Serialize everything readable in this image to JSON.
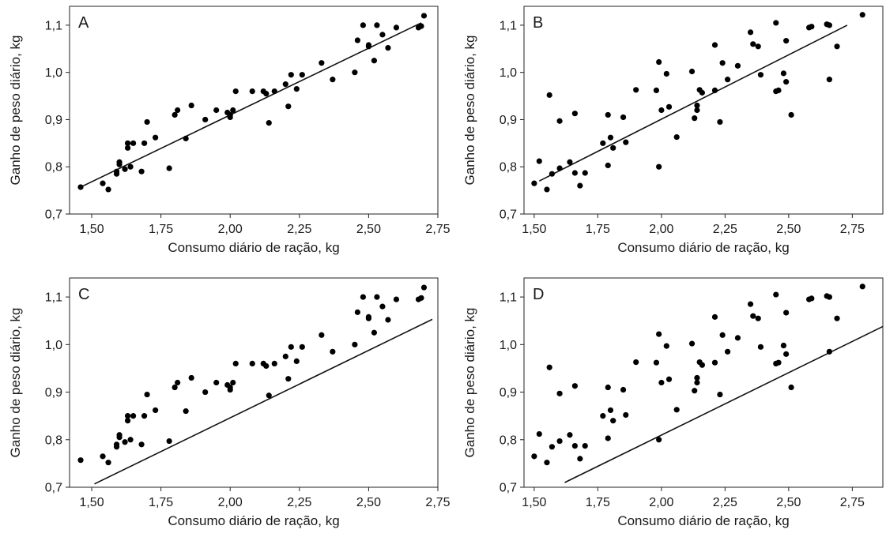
{
  "chart_data": [
    {
      "type": "scatter",
      "panel_label": "A",
      "xlabel": "Consumo diário de ração, kg",
      "ylabel": "Ganho de peso diário, kg",
      "xlim": [
        1.42,
        2.75
      ],
      "ylim": [
        0.7,
        1.14
      ],
      "xticks": [
        "1,50",
        "1,75",
        "2,00",
        "2,25",
        "2,50",
        "2,75"
      ],
      "yticks": [
        "0,7",
        "0,8",
        "0,9",
        "1,0",
        "1,1"
      ],
      "points": [
        [
          1.46,
          0.757
        ],
        [
          1.54,
          0.765
        ],
        [
          1.56,
          0.752
        ],
        [
          1.59,
          0.785
        ],
        [
          1.59,
          0.79
        ],
        [
          1.6,
          0.81
        ],
        [
          1.6,
          0.805
        ],
        [
          1.62,
          0.795
        ],
        [
          1.63,
          0.84
        ],
        [
          1.63,
          0.85
        ],
        [
          1.64,
          0.8
        ],
        [
          1.65,
          0.85
        ],
        [
          1.68,
          0.79
        ],
        [
          1.69,
          0.85
        ],
        [
          1.7,
          0.895
        ],
        [
          1.73,
          0.862
        ],
        [
          1.78,
          0.797
        ],
        [
          1.8,
          0.91
        ],
        [
          1.81,
          0.92
        ],
        [
          1.84,
          0.86
        ],
        [
          1.86,
          0.93
        ],
        [
          1.91,
          0.9
        ],
        [
          1.95,
          0.92
        ],
        [
          1.99,
          0.915
        ],
        [
          2.0,
          0.91
        ],
        [
          2.0,
          0.905
        ],
        [
          2.01,
          0.92
        ],
        [
          2.02,
          0.96
        ],
        [
          2.08,
          0.96
        ],
        [
          2.12,
          0.96
        ],
        [
          2.13,
          0.955
        ],
        [
          2.14,
          0.893
        ],
        [
          2.16,
          0.96
        ],
        [
          2.2,
          0.975
        ],
        [
          2.21,
          0.928
        ],
        [
          2.22,
          0.995
        ],
        [
          2.24,
          0.965
        ],
        [
          2.26,
          0.995
        ],
        [
          2.33,
          1.02
        ],
        [
          2.37,
          0.985
        ],
        [
          2.45,
          1.0
        ],
        [
          2.46,
          1.068
        ],
        [
          2.48,
          1.1
        ],
        [
          2.5,
          1.055
        ],
        [
          2.5,
          1.058
        ],
        [
          2.52,
          1.025
        ],
        [
          2.53,
          1.1
        ],
        [
          2.55,
          1.08
        ],
        [
          2.57,
          1.052
        ],
        [
          2.6,
          1.095
        ],
        [
          2.68,
          1.095
        ],
        [
          2.69,
          1.098
        ],
        [
          2.7,
          1.12
        ]
      ],
      "fit_line": {
        "x": [
          1.46,
          2.69
        ],
        "y": [
          0.757,
          1.105
        ]
      }
    },
    {
      "type": "scatter",
      "panel_label": "B",
      "xlabel": "Consumo diário de ração, kg",
      "ylabel": "Ganho de peso diário, kg",
      "xlim": [
        1.46,
        2.87
      ],
      "ylim": [
        0.7,
        1.14
      ],
      "xticks": [
        "1,50",
        "1,75",
        "2,00",
        "2,25",
        "2,50",
        "2,75"
      ],
      "yticks": [
        "0,7",
        "0,8",
        "0,9",
        "1,0",
        "1,1"
      ],
      "points": [
        [
          1.5,
          0.765
        ],
        [
          1.52,
          0.812
        ],
        [
          1.55,
          0.752
        ],
        [
          1.56,
          0.952
        ],
        [
          1.57,
          0.785
        ],
        [
          1.6,
          0.897
        ],
        [
          1.6,
          0.797
        ],
        [
          1.64,
          0.81
        ],
        [
          1.66,
          0.913
        ],
        [
          1.66,
          0.787
        ],
        [
          1.68,
          0.76
        ],
        [
          1.7,
          0.787
        ],
        [
          1.77,
          0.85
        ],
        [
          1.79,
          0.91
        ],
        [
          1.79,
          0.803
        ],
        [
          1.8,
          0.862
        ],
        [
          1.81,
          0.84
        ],
        [
          1.85,
          0.905
        ],
        [
          1.86,
          0.852
        ],
        [
          1.9,
          0.963
        ],
        [
          1.98,
          0.962
        ],
        [
          1.99,
          0.8
        ],
        [
          1.99,
          1.022
        ],
        [
          2.0,
          0.92
        ],
        [
          2.02,
          0.997
        ],
        [
          2.03,
          0.927
        ],
        [
          2.06,
          0.863
        ],
        [
          2.12,
          1.002
        ],
        [
          2.13,
          0.903
        ],
        [
          2.14,
          0.92
        ],
        [
          2.14,
          0.93
        ],
        [
          2.15,
          0.963
        ],
        [
          2.16,
          0.957
        ],
        [
          2.21,
          1.058
        ],
        [
          2.21,
          0.962
        ],
        [
          2.23,
          0.895
        ],
        [
          2.24,
          1.02
        ],
        [
          2.26,
          0.985
        ],
        [
          2.3,
          1.014
        ],
        [
          2.35,
          1.085
        ],
        [
          2.36,
          1.06
        ],
        [
          2.38,
          1.055
        ],
        [
          2.39,
          0.995
        ],
        [
          2.45,
          0.96
        ],
        [
          2.45,
          1.105
        ],
        [
          2.46,
          0.962
        ],
        [
          2.48,
          0.998
        ],
        [
          2.49,
          0.98
        ],
        [
          2.49,
          1.067
        ],
        [
          2.51,
          0.91
        ],
        [
          2.58,
          1.095
        ],
        [
          2.59,
          1.097
        ],
        [
          2.65,
          1.102
        ],
        [
          2.66,
          1.1
        ],
        [
          2.66,
          0.985
        ],
        [
          2.69,
          1.055
        ],
        [
          2.79,
          1.122
        ]
      ],
      "fit_line": {
        "x": [
          1.52,
          2.73
        ],
        "y": [
          0.77,
          1.1
        ]
      }
    },
    {
      "type": "scatter",
      "panel_label": "C",
      "xlabel": "Consumo diário de ração, kg",
      "ylabel": "Ganho de peso diário, kg",
      "xlim": [
        1.42,
        2.75
      ],
      "ylim": [
        0.7,
        1.14
      ],
      "xticks": [
        "1,50",
        "1,75",
        "2,00",
        "2,25",
        "2,50",
        "2,75"
      ],
      "yticks": [
        "0,7",
        "0,8",
        "0,9",
        "1,0",
        "1,1"
      ],
      "points": [
        [
          1.46,
          0.757
        ],
        [
          1.54,
          0.765
        ],
        [
          1.56,
          0.752
        ],
        [
          1.59,
          0.785
        ],
        [
          1.59,
          0.79
        ],
        [
          1.6,
          0.81
        ],
        [
          1.6,
          0.805
        ],
        [
          1.62,
          0.795
        ],
        [
          1.63,
          0.84
        ],
        [
          1.63,
          0.85
        ],
        [
          1.64,
          0.8
        ],
        [
          1.65,
          0.85
        ],
        [
          1.68,
          0.79
        ],
        [
          1.69,
          0.85
        ],
        [
          1.7,
          0.895
        ],
        [
          1.73,
          0.862
        ],
        [
          1.78,
          0.797
        ],
        [
          1.8,
          0.91
        ],
        [
          1.81,
          0.92
        ],
        [
          1.84,
          0.86
        ],
        [
          1.86,
          0.93
        ],
        [
          1.91,
          0.9
        ],
        [
          1.95,
          0.92
        ],
        [
          1.99,
          0.915
        ],
        [
          2.0,
          0.91
        ],
        [
          2.0,
          0.905
        ],
        [
          2.01,
          0.92
        ],
        [
          2.02,
          0.96
        ],
        [
          2.08,
          0.96
        ],
        [
          2.12,
          0.96
        ],
        [
          2.13,
          0.955
        ],
        [
          2.14,
          0.893
        ],
        [
          2.16,
          0.96
        ],
        [
          2.2,
          0.975
        ],
        [
          2.21,
          0.928
        ],
        [
          2.22,
          0.995
        ],
        [
          2.24,
          0.965
        ],
        [
          2.26,
          0.995
        ],
        [
          2.33,
          1.02
        ],
        [
          2.37,
          0.985
        ],
        [
          2.45,
          1.0
        ],
        [
          2.46,
          1.068
        ],
        [
          2.48,
          1.1
        ],
        [
          2.5,
          1.055
        ],
        [
          2.5,
          1.058
        ],
        [
          2.52,
          1.025
        ],
        [
          2.53,
          1.1
        ],
        [
          2.55,
          1.08
        ],
        [
          2.57,
          1.052
        ],
        [
          2.6,
          1.095
        ],
        [
          2.68,
          1.095
        ],
        [
          2.69,
          1.098
        ],
        [
          2.7,
          1.12
        ]
      ],
      "fit_line": {
        "x": [
          1.51,
          2.73
        ],
        "y": [
          0.707,
          1.053
        ]
      }
    },
    {
      "type": "scatter",
      "panel_label": "D",
      "xlabel": "Consumo diário de ração, kg",
      "ylabel": "Ganho de peso diário, kg",
      "xlim": [
        1.46,
        2.87
      ],
      "ylim": [
        0.7,
        1.14
      ],
      "xticks": [
        "1,50",
        "1,75",
        "2,00",
        "2,25",
        "2,50",
        "2,75"
      ],
      "yticks": [
        "0,7",
        "0,8",
        "0,9",
        "1,0",
        "1,1"
      ],
      "points": [
        [
          1.5,
          0.765
        ],
        [
          1.52,
          0.812
        ],
        [
          1.55,
          0.752
        ],
        [
          1.56,
          0.952
        ],
        [
          1.57,
          0.785
        ],
        [
          1.6,
          0.897
        ],
        [
          1.6,
          0.797
        ],
        [
          1.64,
          0.81
        ],
        [
          1.66,
          0.913
        ],
        [
          1.66,
          0.787
        ],
        [
          1.68,
          0.76
        ],
        [
          1.7,
          0.787
        ],
        [
          1.77,
          0.85
        ],
        [
          1.79,
          0.91
        ],
        [
          1.79,
          0.803
        ],
        [
          1.8,
          0.862
        ],
        [
          1.81,
          0.84
        ],
        [
          1.85,
          0.905
        ],
        [
          1.86,
          0.852
        ],
        [
          1.9,
          0.963
        ],
        [
          1.98,
          0.962
        ],
        [
          1.99,
          0.8
        ],
        [
          1.99,
          1.022
        ],
        [
          2.0,
          0.92
        ],
        [
          2.02,
          0.997
        ],
        [
          2.03,
          0.927
        ],
        [
          2.06,
          0.863
        ],
        [
          2.12,
          1.002
        ],
        [
          2.13,
          0.903
        ],
        [
          2.14,
          0.92
        ],
        [
          2.14,
          0.93
        ],
        [
          2.15,
          0.963
        ],
        [
          2.16,
          0.957
        ],
        [
          2.21,
          1.058
        ],
        [
          2.21,
          0.962
        ],
        [
          2.23,
          0.895
        ],
        [
          2.24,
          1.02
        ],
        [
          2.26,
          0.985
        ],
        [
          2.3,
          1.014
        ],
        [
          2.35,
          1.085
        ],
        [
          2.36,
          1.06
        ],
        [
          2.38,
          1.055
        ],
        [
          2.39,
          0.995
        ],
        [
          2.45,
          0.96
        ],
        [
          2.45,
          1.105
        ],
        [
          2.46,
          0.962
        ],
        [
          2.48,
          0.998
        ],
        [
          2.49,
          0.98
        ],
        [
          2.49,
          1.067
        ],
        [
          2.51,
          0.91
        ],
        [
          2.58,
          1.095
        ],
        [
          2.59,
          1.097
        ],
        [
          2.65,
          1.102
        ],
        [
          2.66,
          1.1
        ],
        [
          2.66,
          0.985
        ],
        [
          2.69,
          1.055
        ],
        [
          2.79,
          1.122
        ]
      ],
      "fit_line": {
        "x": [
          1.62,
          2.87
        ],
        "y": [
          0.71,
          1.038
        ]
      }
    }
  ]
}
